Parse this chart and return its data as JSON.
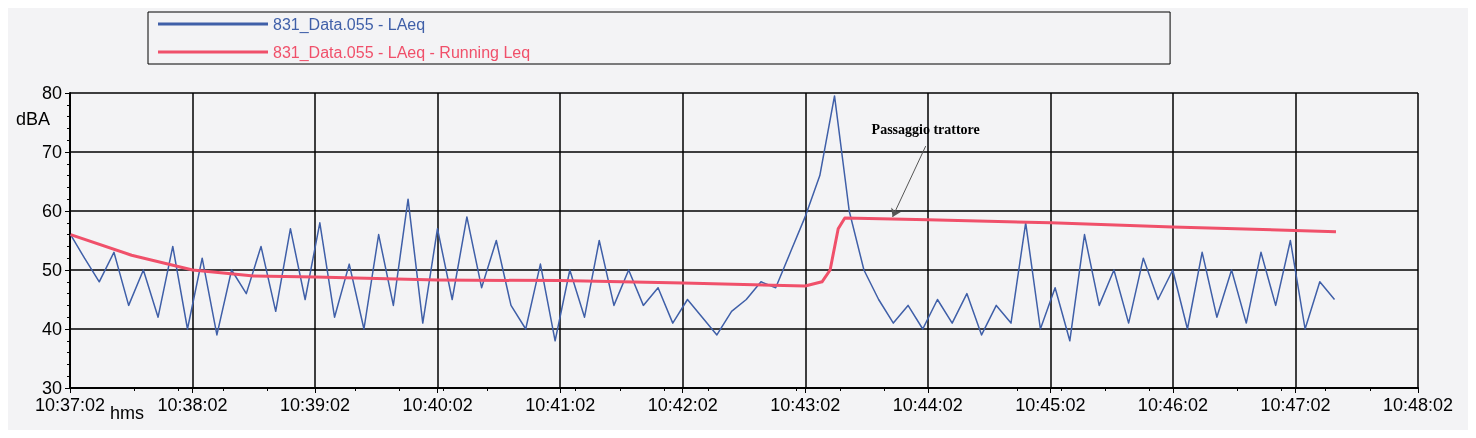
{
  "chart_data": {
    "type": "line",
    "xlabel": "hms",
    "ylabel": "dBA",
    "legend": "top",
    "grid": true,
    "xlim": [
      10.617222,
      10.800556
    ],
    "ylim": [
      30,
      80
    ],
    "yticks": [
      30,
      40,
      50,
      60,
      70,
      80
    ],
    "xticks": [
      {
        "value": 10.617222,
        "label": "10:37:02"
      },
      {
        "value": 10.633889,
        "label": "10:38:02"
      },
      {
        "value": 10.650556,
        "label": "10:39:02"
      },
      {
        "value": 10.667222,
        "label": "10:40:02"
      },
      {
        "value": 10.683889,
        "label": "10:41:02"
      },
      {
        "value": 10.700556,
        "label": "10:42:02"
      },
      {
        "value": 10.717222,
        "label": "10:43:02"
      },
      {
        "value": 10.733889,
        "label": "10:44:02"
      },
      {
        "value": 10.750556,
        "label": "10:45:02"
      },
      {
        "value": 10.767222,
        "label": "10:46:02"
      },
      {
        "value": 10.783889,
        "label": "10:47:02"
      },
      {
        "value": 10.800556,
        "label": "10:48:02"
      }
    ],
    "annotations": [
      {
        "text": "Passaggio trattore",
        "x": 10.7291,
        "y": 59
      }
    ],
    "series": [
      {
        "name": "831_Data.055 - LAeq",
        "color": "#3f5fa8",
        "x": [
          10.6173,
          10.6192,
          10.6212,
          10.6232,
          10.6252,
          10.6272,
          10.6292,
          10.6312,
          10.6332,
          10.6352,
          10.6372,
          10.6392,
          10.6412,
          10.6432,
          10.6452,
          10.6472,
          10.6492,
          10.6512,
          10.6532,
          10.6552,
          10.6572,
          10.6592,
          10.6612,
          10.6632,
          10.6652,
          10.6672,
          10.6692,
          10.6712,
          10.6732,
          10.6752,
          10.6772,
          10.6792,
          10.6812,
          10.6832,
          10.6852,
          10.6872,
          10.6892,
          10.6912,
          10.6932,
          10.6952,
          10.6972,
          10.6992,
          10.7012,
          10.7032,
          10.7052,
          10.7072,
          10.7092,
          10.7112,
          10.7132,
          10.7152,
          10.7172,
          10.7192,
          10.7212,
          10.7232,
          10.7252,
          10.7272,
          10.7292,
          10.7312,
          10.7332,
          10.7352,
          10.7372,
          10.7392,
          10.7412,
          10.7432,
          10.7452,
          10.7472,
          10.7492,
          10.7512,
          10.7532,
          10.7552,
          10.7572,
          10.7592,
          10.7612,
          10.7632,
          10.7652,
          10.7672,
          10.7692,
          10.7712,
          10.7732,
          10.7752,
          10.7772,
          10.7792,
          10.7812,
          10.7832,
          10.7852,
          10.7872,
          10.7892
        ],
        "values": [
          56,
          52,
          48,
          53,
          44,
          50,
          42,
          54,
          40,
          52,
          39,
          50,
          46,
          54,
          43,
          57,
          45,
          58,
          42,
          51,
          40,
          56,
          44,
          62,
          41,
          57,
          45,
          59,
          47,
          55,
          44,
          40,
          51,
          38,
          50,
          42,
          55,
          44,
          50,
          44,
          47,
          41,
          45,
          42,
          39,
          43,
          45,
          48,
          47,
          53,
          59,
          66,
          79.5,
          60,
          50,
          45,
          41,
          44,
          40,
          45,
          41,
          46,
          39,
          44,
          41,
          58,
          40,
          47,
          38,
          56,
          44,
          50,
          41,
          52,
          45,
          50,
          40,
          53,
          42,
          50,
          41,
          53,
          44,
          55,
          40,
          48,
          45
        ]
      },
      {
        "name": "831_Data.055 - LAeq - Running Leq",
        "color": "#f0506a",
        "x": [
          10.6173,
          10.6256,
          10.6339,
          10.6422,
          10.6506,
          10.6672,
          10.6839,
          10.7006,
          10.7172,
          10.7195,
          10.7206,
          10.7217,
          10.7226,
          10.7339,
          10.7506,
          10.7672,
          10.7894
        ],
        "values": [
          56,
          52.5,
          50,
          49,
          48.8,
          48.3,
          48.2,
          47.8,
          47.3,
          48,
          50,
          57,
          58.8,
          58.5,
          58,
          57.3,
          56.5
        ]
      }
    ]
  }
}
